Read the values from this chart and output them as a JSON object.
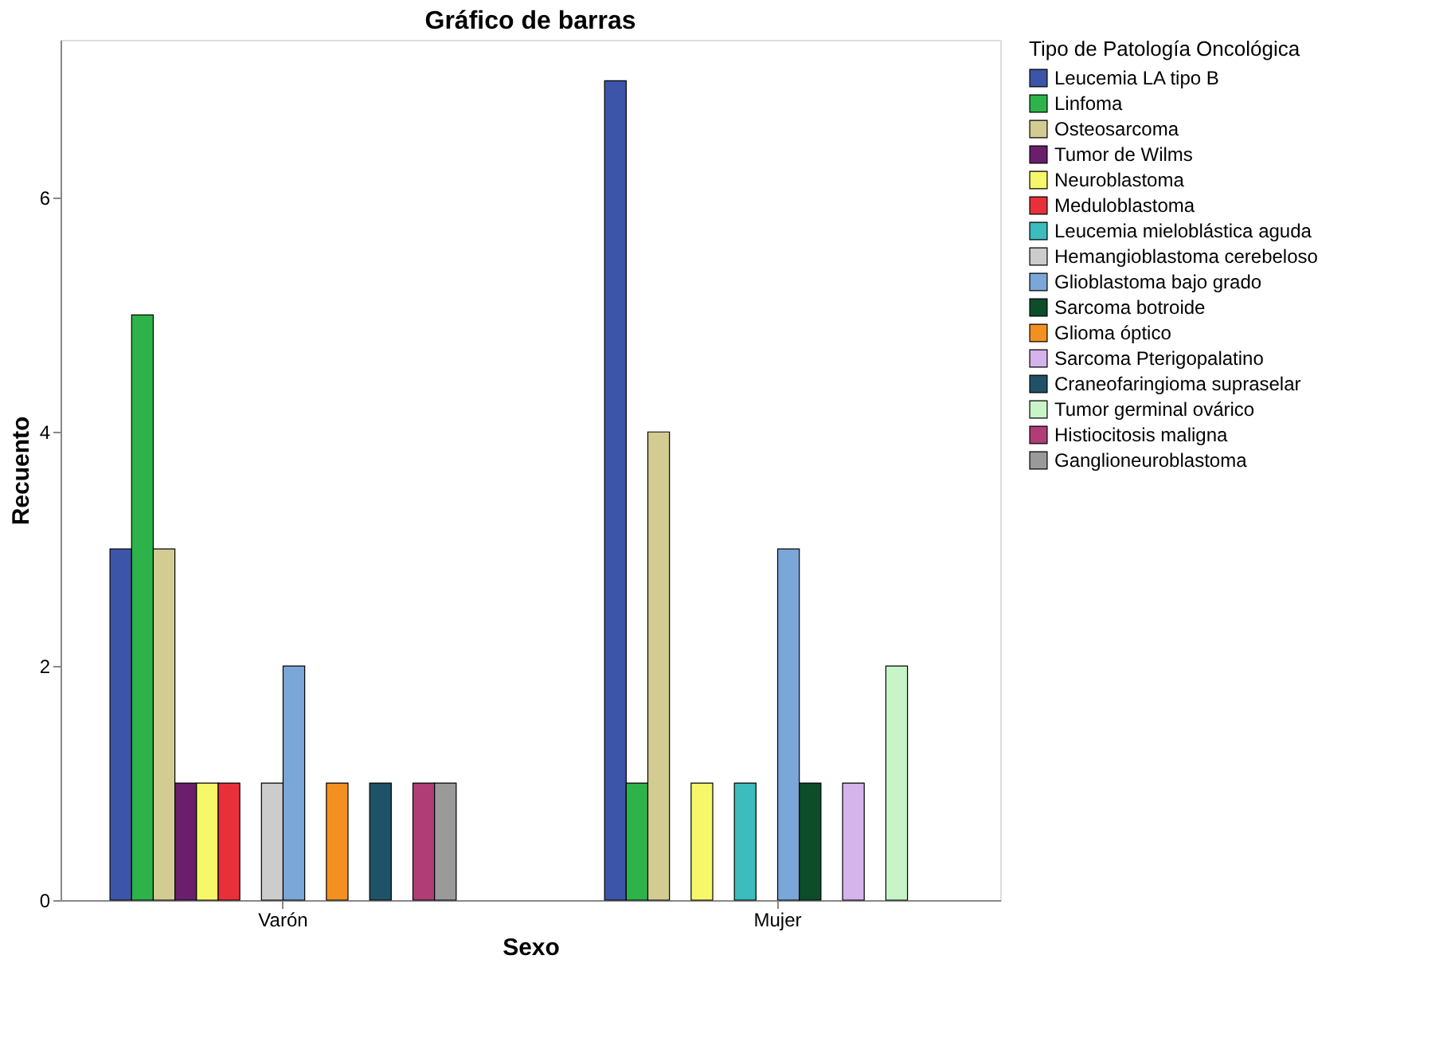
{
  "chart_data": {
    "type": "bar",
    "title": "Gráfico de barras",
    "xlabel": "Sexo",
    "ylabel": "Recuento",
    "legend_title": "Tipo de Patología Oncológica",
    "categories": [
      "Varón",
      "Mujer"
    ],
    "series": [
      {
        "name": "Leucemia LA tipo B",
        "color": "#3d55a8",
        "values": [
          3,
          7
        ]
      },
      {
        "name": "Linfoma",
        "color": "#2db34a",
        "values": [
          5,
          1
        ]
      },
      {
        "name": "Osteosarcoma",
        "color": "#d2cc92",
        "values": [
          3,
          4
        ]
      },
      {
        "name": "Tumor de Wilms",
        "color": "#6b1e6b",
        "values": [
          1,
          null
        ]
      },
      {
        "name": "Neuroblastoma",
        "color": "#f7f76a",
        "values": [
          1,
          1
        ]
      },
      {
        "name": "Meduloblastoma",
        "color": "#e8303a",
        "values": [
          1,
          null
        ]
      },
      {
        "name": "Leucemia mieloblástica aguda",
        "color": "#3cbcbc",
        "values": [
          null,
          1
        ]
      },
      {
        "name": "Hemangioblastoma cerebeloso",
        "color": "#cccccc",
        "values": [
          1,
          null
        ]
      },
      {
        "name": "Glioblastoma bajo grado",
        "color": "#7aa6d8",
        "values": [
          2,
          3
        ]
      },
      {
        "name": "Sarcoma botroide",
        "color": "#0d4d2a",
        "values": [
          null,
          1
        ]
      },
      {
        "name": "Glioma óptico",
        "color": "#f39120",
        "values": [
          1,
          null
        ]
      },
      {
        "name": "Sarcoma Pterigopalatino",
        "color": "#d5b3eb",
        "values": [
          null,
          1
        ]
      },
      {
        "name": "Craneofaringioma supraselar",
        "color": "#1f5266",
        "values": [
          1,
          null
        ]
      },
      {
        "name": "Tumor germinal ovárico",
        "color": "#c8f5c8",
        "values": [
          null,
          2
        ]
      },
      {
        "name": "Histiocitosis maligna",
        "color": "#b03d76",
        "values": [
          1,
          null
        ]
      },
      {
        "name": "Ganglioneuroblastoma",
        "color": "#9a9a9a",
        "values": [
          1,
          null
        ]
      }
    ],
    "ylim": [
      0,
      7.35
    ],
    "yticks": [
      0,
      2,
      4,
      6
    ],
    "grid": false,
    "legend": "right"
  }
}
